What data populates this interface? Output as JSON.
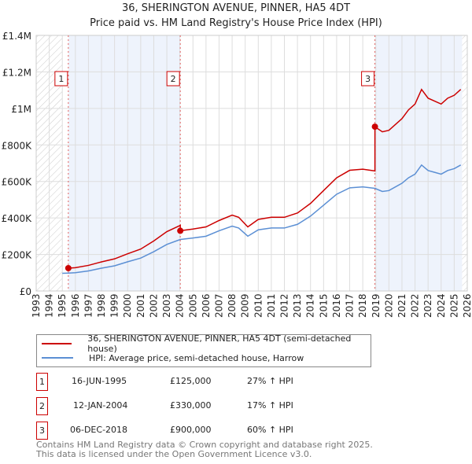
{
  "chart_data": {
    "type": "line",
    "title": "36, SHERINGTON AVENUE, PINNER, HA5 4DT",
    "subtitle": "Price paid vs. HM Land Registry's House Price Index (HPI)",
    "xlim": [
      1993,
      2026
    ],
    "ylim": [
      0,
      1400000
    ],
    "y_ticks": [
      {
        "v": 0,
        "label": "£0"
      },
      {
        "v": 200000,
        "label": "£200K"
      },
      {
        "v": 400000,
        "label": "£400K"
      },
      {
        "v": 600000,
        "label": "£600K"
      },
      {
        "v": 800000,
        "label": "£800K"
      },
      {
        "v": 1000000,
        "label": "£1M"
      },
      {
        "v": 1200000,
        "label": "£1.2M"
      },
      {
        "v": 1400000,
        "label": "£1.4M"
      }
    ],
    "x_ticks": [
      "1993",
      "1994",
      "1995",
      "1996",
      "1997",
      "1998",
      "1999",
      "2000",
      "2001",
      "2002",
      "2003",
      "2004",
      "2005",
      "2006",
      "2007",
      "2008",
      "2009",
      "2010",
      "2011",
      "2012",
      "2013",
      "2014",
      "2015",
      "2016",
      "2017",
      "2018",
      "2019",
      "2020",
      "2021",
      "2022",
      "2023",
      "2024",
      "2025",
      "2026"
    ],
    "hatched_ranges": [
      [
        1993,
        1995
      ],
      [
        2025.6,
        2026
      ]
    ],
    "shaded_ranges": [
      [
        1995.46,
        2004.03
      ],
      [
        2018.93,
        2025.6
      ]
    ],
    "sales": [
      {
        "x": 1995.46,
        "y": 125000,
        "label": "1"
      },
      {
        "x": 2004.03,
        "y": 330000,
        "label": "2"
      },
      {
        "x": 2018.93,
        "y": 900000,
        "label": "3"
      }
    ],
    "series": [
      {
        "name": "36, SHERINGTON AVENUE, PINNER, HA5 4DT (semi-detached house)",
        "color": "#cc0000",
        "ratios": [
          1.275,
          1.17,
          1.6
        ]
      },
      {
        "name": "HPI: Average price, semi-detached house, Harrow",
        "color": "#5b8fd4",
        "x": [
          1995,
          1995.46,
          1996,
          1997,
          1998,
          1999,
          2000,
          2001,
          2002,
          2003,
          2004.03,
          2005,
          2006,
          2007,
          2008,
          2008.5,
          2009.2,
          2010,
          2011,
          2012,
          2013,
          2014,
          2015,
          2016,
          2017,
          2018,
          2018.93,
          2019.5,
          2020,
          2021,
          2021.5,
          2022,
          2022.5,
          2023,
          2023.5,
          2024,
          2024.5,
          2025,
          2025.5
        ],
        "y": [
          97000,
          98000,
          100000,
          110000,
          125000,
          138000,
          160000,
          180000,
          215000,
          255000,
          282000,
          290000,
          300000,
          330000,
          355000,
          345000,
          300000,
          335000,
          345000,
          345000,
          365000,
          410000,
          470000,
          530000,
          565000,
          570000,
          562000,
          545000,
          550000,
          590000,
          620000,
          640000,
          690000,
          660000,
          650000,
          640000,
          660000,
          670000,
          690000
        ]
      }
    ]
  },
  "legend": {
    "items": [
      "36, SHERINGTON AVENUE, PINNER, HA5 4DT (semi-detached house)",
      "HPI: Average price, semi-detached house, Harrow"
    ]
  },
  "table": [
    {
      "num": "1",
      "date": "16-JUN-1995",
      "price": "£125,000",
      "hpi": "27% ↑ HPI"
    },
    {
      "num": "2",
      "date": "12-JAN-2004",
      "price": "£330,000",
      "hpi": "17% ↑ HPI"
    },
    {
      "num": "3",
      "date": "06-DEC-2018",
      "price": "£900,000",
      "hpi": "60% ↑ HPI"
    }
  ],
  "footer": {
    "line1": "Contains HM Land Registry data © Crown copyright and database right 2025.",
    "line2": "This data is licensed under the Open Government Licence v3.0."
  }
}
